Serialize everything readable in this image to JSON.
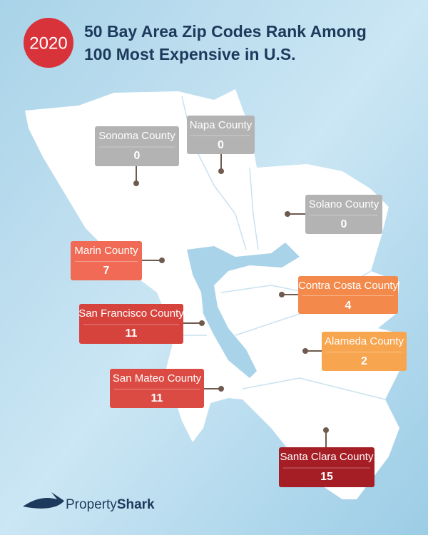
{
  "badge": "2020",
  "title": "50 Bay Area Zip Codes Rank Among 100 Most Expensive in U.S.",
  "counties": [
    {
      "name": "Sonoma County",
      "zip_codes": 0,
      "color": "#b3b3b3"
    },
    {
      "name": "Napa County",
      "zip_codes": 0,
      "color": "#b3b3b3"
    },
    {
      "name": "Solano County",
      "zip_codes": 0,
      "color": "#b3b3b3"
    },
    {
      "name": "Marin County",
      "zip_codes": 7,
      "color": "#f06a55"
    },
    {
      "name": "Contra Costa County",
      "zip_codes": 4,
      "color": "#f3894a"
    },
    {
      "name": "San Francisco County",
      "zip_codes": 11,
      "color": "#d6433d"
    },
    {
      "name": "Alameda County",
      "zip_codes": 2,
      "color": "#f7a54f"
    },
    {
      "name": "San Mateo County",
      "zip_codes": 11,
      "color": "#dc4b43"
    },
    {
      "name": "Santa Clara County",
      "zip_codes": 15,
      "color": "#a51d25"
    }
  ],
  "brand": [
    "Property",
    "Shark"
  ]
}
